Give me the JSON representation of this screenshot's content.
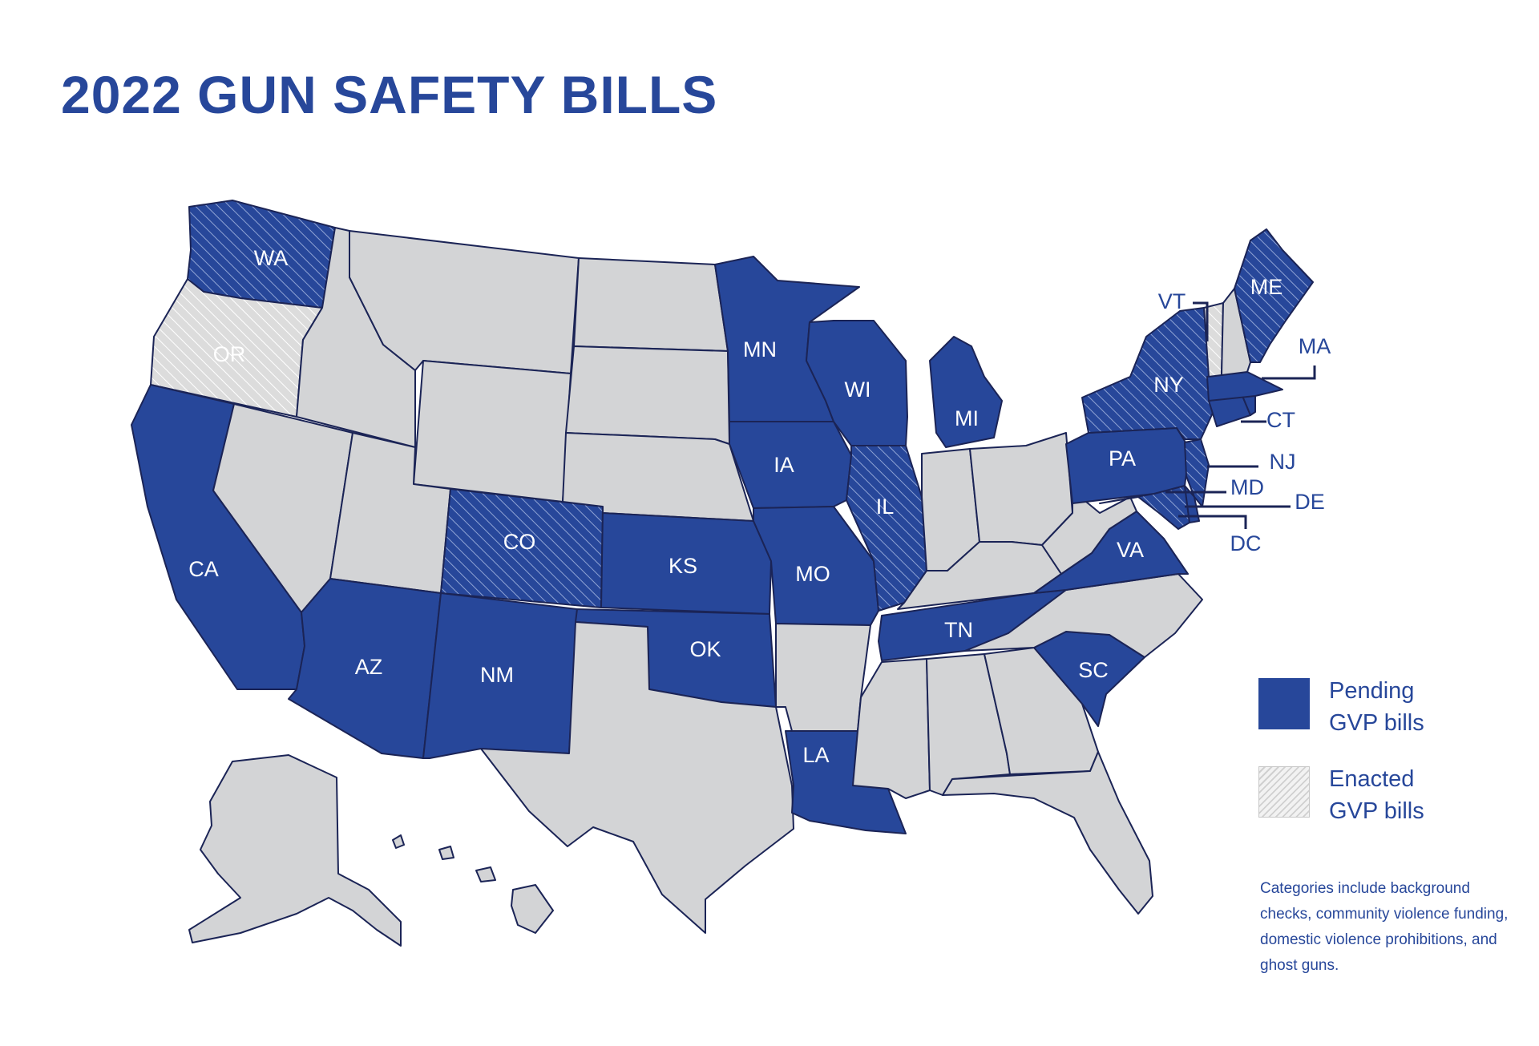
{
  "title": "2022 GUN SAFETY BILLS",
  "colors": {
    "pending": "#27479a",
    "enacted": "#e6e6e6",
    "no_bill": "#d3d4d6",
    "border": "#1b2456",
    "text": "#27479a"
  },
  "categories": {
    "pending": [
      "WA",
      "CA",
      "AZ",
      "NM",
      "KS",
      "OK",
      "MN",
      "IA",
      "MO",
      "LA",
      "WI",
      "MI",
      "TN",
      "SC",
      "VA",
      "PA",
      "NY",
      "ME",
      "MA",
      "CT",
      "NJ",
      "MD",
      "DE",
      "DC",
      "CO",
      "IL"
    ],
    "enacted": [
      "WA",
      "OR",
      "CO",
      "IL",
      "NY",
      "ME",
      "NJ",
      "MD",
      "VT"
    ]
  },
  "labels": {
    "WA": "WA",
    "OR": "OR",
    "CA": "CA",
    "AZ": "AZ",
    "NM": "NM",
    "CO": "CO",
    "KS": "KS",
    "OK": "OK",
    "MN": "MN",
    "IA": "IA",
    "MO": "MO",
    "LA": "LA",
    "WI": "WI",
    "IL": "IL",
    "MI": "MI",
    "TN": "TN",
    "SC": "SC",
    "VA": "VA",
    "PA": "PA",
    "NY": "NY",
    "ME": "ME",
    "VT": "VT",
    "MA": "MA",
    "CT": "CT",
    "NJ": "NJ",
    "MD": "MD",
    "DE": "DE",
    "DC": "DC"
  },
  "legend": {
    "pending_line1": "Pending",
    "pending_line2": "GVP bills",
    "enacted_line1": "Enacted",
    "enacted_line2": "GVP bills"
  },
  "note": "Categories include background checks, community violence funding, domestic violence prohibitions, and ghost guns."
}
